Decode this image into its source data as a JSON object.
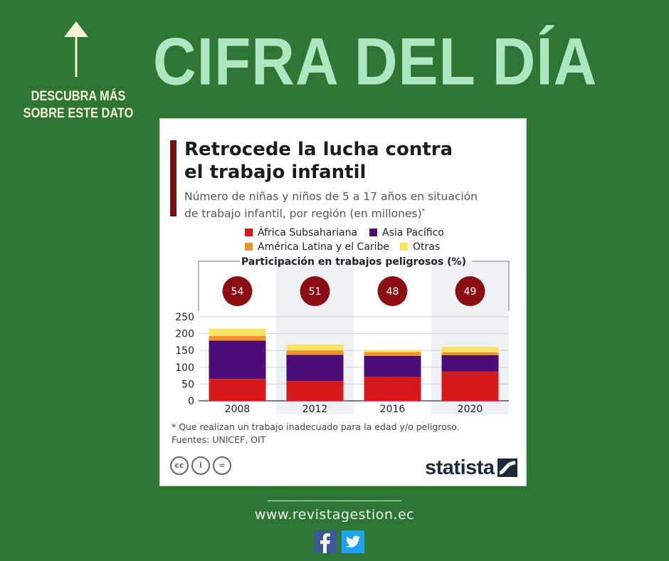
{
  "header": {
    "title": "CIFRA DEL DÍA",
    "side_label_line1": "DESCUBRA MÁS",
    "side_label_line2": "SOBRE ESTE DATO"
  },
  "card": {
    "title": "Retrocede la lucha contra\nel trabajo infantil",
    "subtitle": "Número de niñas y niños de 5 a 17 años en situación\nde trabajo infantil, por región (en millones)",
    "subtitle_mark": "*",
    "footnote": "* Que realizan un trabajo inadecuado para la edad y/o peligroso.\nFuentes: UNICEF, OIT",
    "brand": "statista",
    "cc_icons": [
      "cc-icon",
      "by-icon",
      "nd-icon"
    ]
  },
  "chart_data": {
    "type": "bar",
    "stacked": true,
    "categories": [
      "2008",
      "2012",
      "2016",
      "2020"
    ],
    "series": [
      {
        "name": "África Subsahariana",
        "color": "#d7191c",
        "values": [
          65,
          59,
          72,
          87
        ]
      },
      {
        "name": "Asia Pacífico",
        "color": "#4b0e78",
        "values": [
          114,
          78,
          62,
          49
        ]
      },
      {
        "name": "América Latina y el Caribe",
        "color": "#f0932b",
        "values": [
          14,
          13,
          11,
          8
        ]
      },
      {
        "name": "Otras",
        "color": "#f7e463",
        "values": [
          22,
          18,
          6,
          16
        ]
      }
    ],
    "ylim": [
      0,
      250
    ],
    "yticks": [
      0,
      50,
      100,
      150,
      200,
      250
    ],
    "grid": true,
    "hazardous_title": "Participación en trabajos peligrosos (%)",
    "hazardous_share": [
      54,
      51,
      48,
      49
    ],
    "hazardous_color": "#8b0f12"
  },
  "footer": {
    "website": "www.revistagestion.ec",
    "social": [
      "facebook-icon",
      "twitter-icon"
    ]
  }
}
